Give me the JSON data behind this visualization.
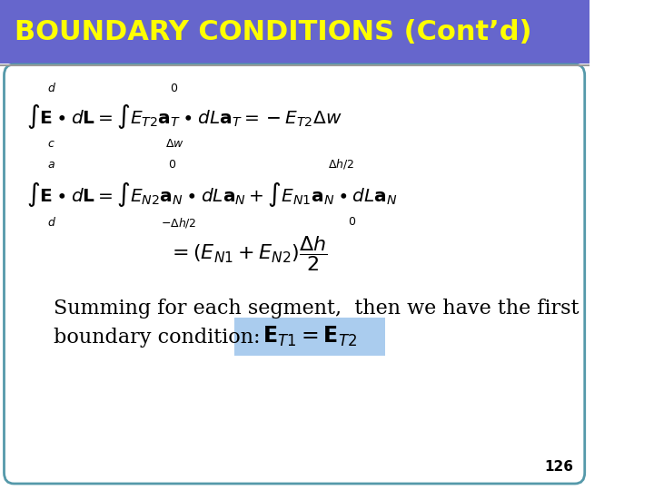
{
  "title": "BOUNDARY CONDITIONS (Cont’d)",
  "title_bg_color": "#6666cc",
  "title_text_color": "#ffff00",
  "title_fontsize": 22,
  "bg_color": "#ffffff",
  "border_color": "#5599aa",
  "page_number": "126",
  "highlight_bg": "#aaccee",
  "text_line1": "Summing for each segment,  then we have the first",
  "text_line2": "boundary condition:",
  "text_fontsize": 16
}
